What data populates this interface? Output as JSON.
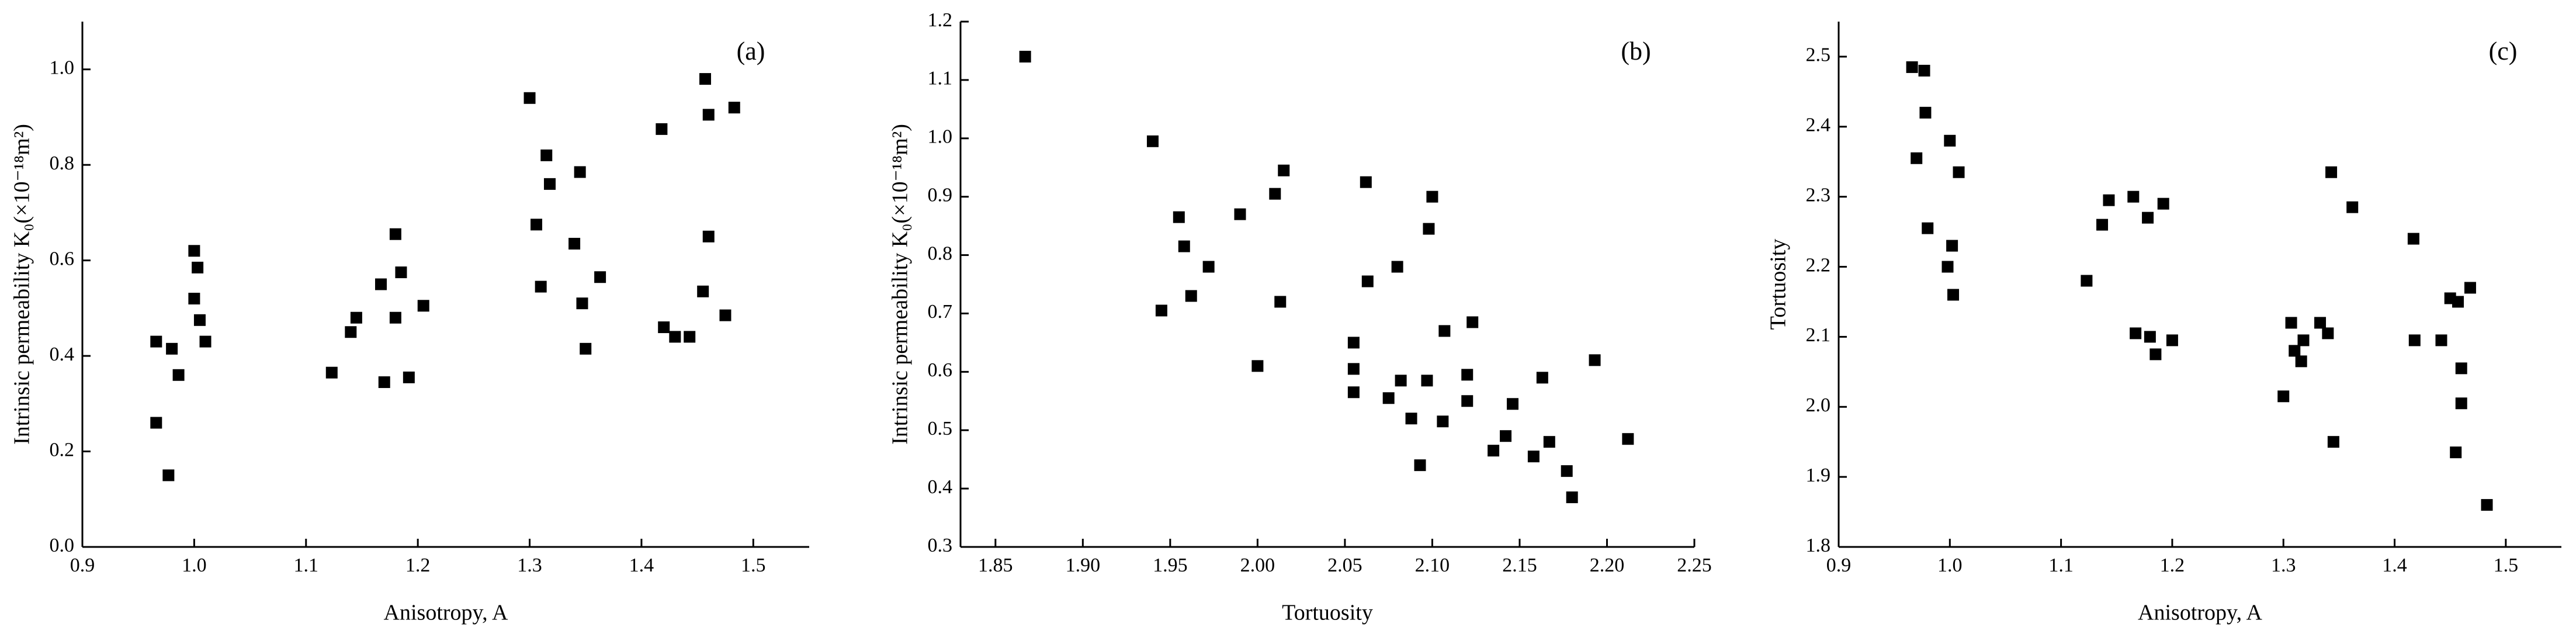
{
  "chart_data": [
    {
      "type": "scatter",
      "annotation": "(a)",
      "xlabel": "Anisotropy, A",
      "ylabel": "Intrinsic permeability K₀(×10⁻¹⁸m²)",
      "color": "#000000",
      "xlim": [
        0.9,
        1.55
      ],
      "ylim": [
        0,
        1.1
      ],
      "xticks": [
        0.9,
        {
          "value": 1.0,
          "label": "1.0"
        },
        1.1,
        1.2,
        1.3,
        1.4,
        1.5
      ],
      "yticks": [
        {
          "value": 0,
          "label": "0.0"
        },
        0.2,
        0.4,
        0.6,
        0.8,
        {
          "value": 1.0,
          "label": "1.0"
        }
      ],
      "x": [
        0.966,
        0.966,
        0.977,
        0.98,
        0.986,
        1.0,
        1.0,
        1.003,
        1.005,
        1.01,
        1.123,
        1.14,
        1.145,
        1.167,
        1.17,
        1.18,
        1.18,
        1.185,
        1.192,
        1.205,
        1.3,
        1.306,
        1.31,
        1.315,
        1.318,
        1.34,
        1.345,
        1.347,
        1.35,
        1.363,
        1.418,
        1.42,
        1.43,
        1.443,
        1.455,
        1.457,
        1.46,
        1.46,
        1.475,
        1.483
      ],
      "values": [
        0.43,
        0.26,
        0.15,
        0.415,
        0.36,
        0.62,
        0.52,
        0.585,
        0.475,
        0.43,
        0.365,
        0.45,
        0.48,
        0.55,
        0.345,
        0.655,
        0.48,
        0.575,
        0.355,
        0.505,
        0.94,
        0.675,
        0.545,
        0.82,
        0.76,
        0.635,
        0.785,
        0.51,
        0.415,
        0.565,
        0.875,
        0.46,
        0.44,
        0.44,
        0.535,
        0.98,
        0.65,
        0.905,
        0.485,
        0.92
      ]
    },
    {
      "type": "scatter",
      "annotation": "(b)",
      "xlabel": "Tortuosity",
      "ylabel": "Intrinsic permeability K₀(×10⁻¹⁸m²)",
      "color": "#000000",
      "xlim": [
        1.83,
        2.25
      ],
      "ylim": [
        0.3,
        1.2
      ],
      "xticks": [
        1.85,
        {
          "value": 1.9,
          "label": "1.90"
        },
        1.95,
        {
          "value": 2.0,
          "label": "2.00"
        },
        2.05,
        {
          "value": 2.1,
          "label": "2.10"
        },
        2.15,
        {
          "value": 2.2,
          "label": "2.20"
        },
        2.25
      ],
      "yticks": [
        0.3,
        0.4,
        0.5,
        0.6,
        0.7,
        0.8,
        0.9,
        {
          "value": 1.0,
          "label": "1.0"
        },
        1.1,
        1.2
      ],
      "x": [
        1.867,
        1.94,
        1.945,
        1.955,
        1.958,
        1.962,
        1.972,
        1.99,
        2.0,
        2.01,
        2.013,
        2.015,
        2.055,
        2.055,
        2.055,
        2.062,
        2.063,
        2.075,
        2.08,
        2.082,
        2.088,
        2.093,
        2.097,
        2.098,
        2.1,
        2.106,
        2.107,
        2.12,
        2.12,
        2.123,
        2.135,
        2.142,
        2.146,
        2.158,
        2.163,
        2.167,
        2.177,
        2.18,
        2.193,
        2.212
      ],
      "values": [
        1.14,
        0.995,
        0.705,
        0.865,
        0.815,
        0.73,
        0.78,
        0.87,
        0.61,
        0.905,
        0.72,
        0.945,
        0.65,
        0.605,
        0.565,
        0.925,
        0.755,
        0.555,
        0.78,
        0.585,
        0.52,
        0.44,
        0.585,
        0.845,
        0.9,
        0.515,
        0.67,
        0.595,
        0.55,
        0.685,
        0.465,
        0.49,
        0.545,
        0.455,
        0.59,
        0.48,
        0.43,
        0.385,
        0.62,
        0.485
      ]
    },
    {
      "type": "scatter",
      "annotation": "(c)",
      "xlabel": "Anisotropy, A",
      "ylabel": "Tortuosity",
      "color": "#000000",
      "xlim": [
        0.9,
        1.55
      ],
      "ylim": [
        1.8,
        2.55
      ],
      "xticks": [
        0.9,
        {
          "value": 1.0,
          "label": "1.0"
        },
        1.1,
        1.2,
        1.3,
        1.4,
        1.5
      ],
      "yticks": [
        1.8,
        1.9,
        {
          "value": 2.0,
          "label": "2.0"
        },
        2.1,
        2.2,
        2.3,
        2.4,
        2.5
      ],
      "x": [
        0.966,
        0.97,
        0.977,
        0.978,
        0.98,
        0.998,
        1.0,
        1.002,
        1.003,
        1.008,
        1.123,
        1.137,
        1.143,
        1.165,
        1.167,
        1.178,
        1.18,
        1.185,
        1.192,
        1.2,
        1.3,
        1.307,
        1.31,
        1.316,
        1.318,
        1.333,
        1.34,
        1.343,
        1.345,
        1.362,
        1.417,
        1.418,
        1.442,
        1.45,
        1.455,
        1.457,
        1.46,
        1.46,
        1.468,
        1.483
      ],
      "values": [
        2.485,
        2.355,
        2.48,
        2.42,
        2.255,
        2.2,
        2.38,
        2.23,
        2.16,
        2.335,
        2.18,
        2.26,
        2.295,
        2.3,
        2.105,
        2.27,
        2.1,
        2.075,
        2.29,
        2.095,
        2.015,
        2.12,
        2.08,
        2.065,
        2.095,
        2.12,
        2.105,
        2.335,
        1.95,
        2.285,
        2.24,
        2.095,
        2.095,
        2.155,
        1.935,
        2.15,
        2.055,
        2.005,
        2.17,
        1.86
      ]
    }
  ]
}
